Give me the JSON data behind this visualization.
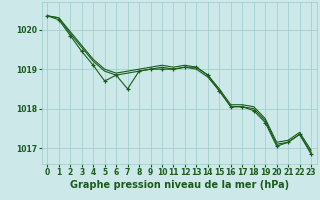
{
  "background_color": "#cce8e8",
  "grid_color": "#99cccc",
  "line_color": "#1a5c1a",
  "marker_color": "#1a5c1a",
  "xlabel": "Graphe pression niveau de la mer (hPa)",
  "xlabel_fontsize": 7.0,
  "tick_fontsize": 5.5,
  "ylim": [
    1016.6,
    1020.7
  ],
  "xlim": [
    -0.5,
    23.5
  ],
  "yticks": [
    1017,
    1018,
    1019,
    1020
  ],
  "xticks": [
    0,
    1,
    2,
    3,
    4,
    5,
    6,
    7,
    8,
    9,
    10,
    11,
    12,
    13,
    14,
    15,
    16,
    17,
    18,
    19,
    20,
    21,
    22,
    23
  ],
  "series1": [
    1020.35,
    1020.3,
    1019.95,
    1019.6,
    1019.25,
    1019.0,
    1018.9,
    1018.95,
    1019.0,
    1019.05,
    1019.1,
    1019.05,
    1019.1,
    1019.05,
    1018.85,
    1018.5,
    1018.1,
    1018.1,
    1018.05,
    1017.75,
    1017.15,
    1017.2,
    1017.4,
    1016.95
  ],
  "series2": [
    1020.35,
    1020.3,
    1019.9,
    1019.55,
    1019.2,
    1018.95,
    1018.85,
    1018.9,
    1018.95,
    1019.0,
    1019.05,
    1019.0,
    1019.05,
    1019.0,
    1018.8,
    1018.45,
    1018.05,
    1018.05,
    1018.0,
    1017.7,
    1017.1,
    1017.15,
    1017.35,
    1016.9
  ],
  "series3": [
    1020.35,
    1020.25,
    1019.85,
    1019.45,
    1019.1,
    1018.7,
    1018.85,
    1018.5,
    1018.95,
    1019.0,
    1019.0,
    1019.0,
    1019.05,
    1019.05,
    1018.85,
    1018.45,
    1018.05,
    1018.05,
    1017.95,
    1017.65,
    1017.05,
    1017.15,
    1017.35,
    1016.85
  ]
}
